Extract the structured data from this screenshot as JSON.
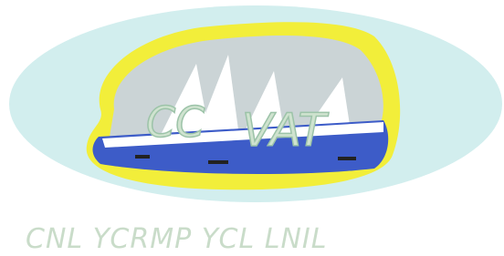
{
  "logo": {
    "monogram_left": "CC",
    "monogram_right": "VAT",
    "tagline": "CNL YCRMP YCL LNIL"
  }
}
